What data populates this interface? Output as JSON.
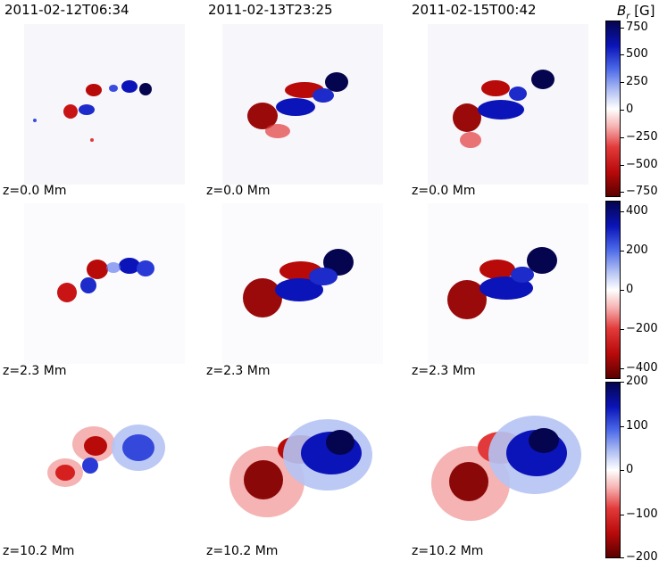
{
  "columns": [
    {
      "title": "2011-02-12T06:34"
    },
    {
      "title": "2011-02-13T23:25"
    },
    {
      "title": "2011-02-15T00:42"
    }
  ],
  "rows": [
    {
      "z_label": "z=0.0 Mm"
    },
    {
      "z_label": "z=2.3 Mm"
    },
    {
      "z_label": "z=10.2 Mm"
    }
  ],
  "colorbar": {
    "symbol": "B",
    "subscript": "r",
    "unit": "[G]",
    "row1_ticks": [
      "750",
      "500",
      "250",
      "0",
      "−250",
      "−500",
      "−750"
    ],
    "row2_ticks": [
      "400",
      "200",
      "0",
      "−200",
      "−400"
    ],
    "row3_ticks": [
      "200",
      "100",
      "0",
      "−100",
      "−200"
    ]
  },
  "colors": {
    "positive": "#0b14b8",
    "negative": "#b90a0a",
    "zero": "#ffffff"
  }
}
